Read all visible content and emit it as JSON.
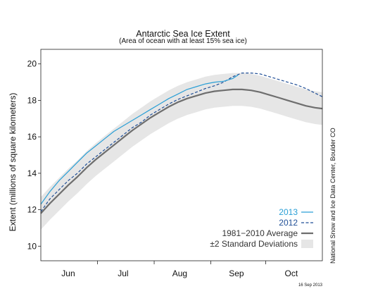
{
  "chart_data": {
    "type": "line",
    "title": "Antarctic Sea Ice Extent",
    "subtitle": "(Area of ocean with at least 15% sea ice)",
    "ylabel": "Extent (millions of square kilometers)",
    "xlabel": "",
    "ylim": [
      9.2,
      20.8
    ],
    "yticks": [
      10,
      12,
      14,
      16,
      18,
      20
    ],
    "xlim": [
      151,
      305
    ],
    "months": [
      {
        "label": "Jun",
        "day": 166
      },
      {
        "label": "Jul",
        "day": 196
      },
      {
        "label": "Aug",
        "day": 227
      },
      {
        "label": "Sep",
        "day": 258
      },
      {
        "label": "Oct",
        "day": 288
      }
    ],
    "month_boundaries": [
      182,
      213,
      244,
      274
    ],
    "grid": false,
    "legend_position": "bottom-right",
    "series": [
      {
        "name": "2013",
        "style": "solid",
        "color": "#2a9fd6",
        "x": [
          151,
          156,
          161,
          166,
          171,
          176,
          181,
          186,
          191,
          196,
          201,
          206,
          211,
          216,
          221,
          226,
          231,
          236,
          241,
          246,
          251,
          256,
          259
        ],
        "y": [
          12.3,
          13.0,
          13.6,
          14.1,
          14.6,
          15.1,
          15.5,
          15.9,
          16.3,
          16.6,
          16.9,
          17.2,
          17.5,
          17.8,
          18.1,
          18.35,
          18.6,
          18.75,
          18.9,
          19.0,
          19.05,
          19.2,
          19.4
        ]
      },
      {
        "name": "2012",
        "style": "dashed",
        "color": "#1f4e96",
        "x": [
          151,
          156,
          161,
          166,
          171,
          176,
          181,
          186,
          191,
          196,
          201,
          206,
          211,
          216,
          221,
          226,
          231,
          236,
          241,
          246,
          251,
          256,
          261,
          266,
          271,
          276,
          281,
          286,
          291,
          296,
          301,
          305
        ],
        "y": [
          11.9,
          12.6,
          13.1,
          13.6,
          14.0,
          14.5,
          14.9,
          15.3,
          15.7,
          16.1,
          16.5,
          16.8,
          17.2,
          17.5,
          17.8,
          18.05,
          18.25,
          18.45,
          18.65,
          18.8,
          19.0,
          19.3,
          19.5,
          19.5,
          19.45,
          19.3,
          19.15,
          19.0,
          18.85,
          18.65,
          18.4,
          18.2
        ]
      },
      {
        "name": "1981−2010 Average",
        "style": "solid-thick",
        "color": "#6e6e6e",
        "x": [
          151,
          156,
          161,
          166,
          171,
          176,
          181,
          186,
          191,
          196,
          201,
          206,
          211,
          216,
          221,
          226,
          231,
          236,
          241,
          246,
          251,
          256,
          261,
          266,
          271,
          276,
          281,
          286,
          291,
          296,
          301,
          305
        ],
        "y": [
          11.8,
          12.35,
          12.85,
          13.35,
          13.8,
          14.3,
          14.75,
          15.15,
          15.55,
          15.95,
          16.35,
          16.7,
          17.05,
          17.35,
          17.65,
          17.9,
          18.1,
          18.25,
          18.4,
          18.5,
          18.55,
          18.6,
          18.6,
          18.55,
          18.45,
          18.3,
          18.15,
          18.0,
          17.85,
          17.7,
          17.6,
          17.55
        ]
      }
    ],
    "band": {
      "name": "±2 Standard Deviations",
      "color": "#e6e6e6",
      "x": [
        151,
        156,
        161,
        166,
        171,
        176,
        181,
        186,
        191,
        196,
        201,
        206,
        211,
        216,
        221,
        226,
        231,
        236,
        241,
        246,
        251,
        256,
        261,
        266,
        271,
        276,
        281,
        286,
        291,
        296,
        301,
        305
      ],
      "upper": [
        12.7,
        13.25,
        13.75,
        14.25,
        14.7,
        15.2,
        15.65,
        16.05,
        16.45,
        16.85,
        17.25,
        17.6,
        17.95,
        18.25,
        18.55,
        18.8,
        19.0,
        19.15,
        19.3,
        19.4,
        19.45,
        19.5,
        19.5,
        19.45,
        19.35,
        19.2,
        19.05,
        18.9,
        18.75,
        18.6,
        18.5,
        18.45
      ],
      "lower": [
        10.9,
        11.45,
        11.95,
        12.45,
        12.9,
        13.4,
        13.85,
        14.25,
        14.65,
        15.05,
        15.45,
        15.8,
        16.15,
        16.45,
        16.75,
        17.0,
        17.2,
        17.35,
        17.5,
        17.6,
        17.65,
        17.7,
        17.7,
        17.65,
        17.55,
        17.4,
        17.25,
        17.1,
        16.95,
        16.8,
        16.7,
        16.65
      ]
    }
  },
  "credit": "National Snow and Ice Data Center, Boulder CO",
  "date_stamp": "16 Sep 2013"
}
